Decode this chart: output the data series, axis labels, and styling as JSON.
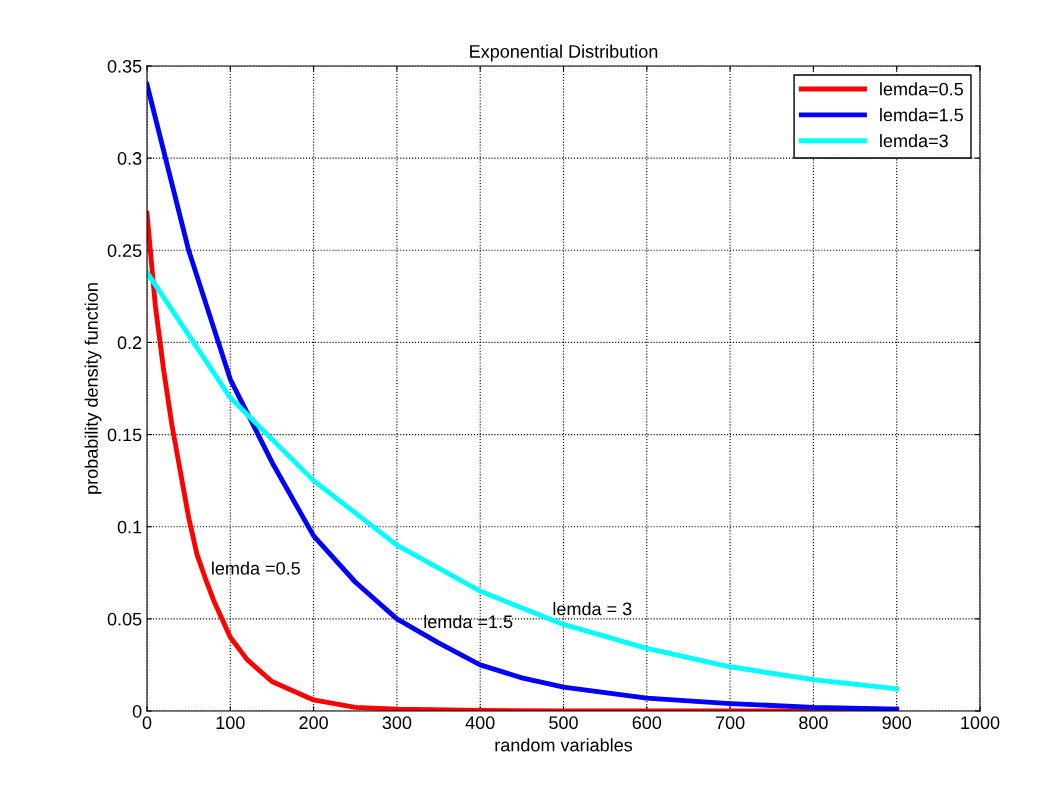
{
  "chart_data": {
    "type": "line",
    "title": "Exponential Distribution",
    "xlabel": "random variables",
    "ylabel": "probability density function",
    "xlim": [
      0,
      1000
    ],
    "xticks": [
      0,
      100,
      200,
      300,
      400,
      500,
      600,
      700,
      800,
      900,
      1000
    ],
    "ylim": [
      0,
      0.35
    ],
    "yticks": [
      0,
      0.05,
      0.1,
      0.15,
      0.2,
      0.25,
      0.3,
      0.35
    ],
    "grid": true,
    "legend": "top right",
    "line_style": "solid",
    "marker": "none",
    "series": [
      {
        "name": "lemda=0.5",
        "color": "#ff0000",
        "x": [
          0,
          10,
          20,
          30,
          40,
          50,
          60,
          70,
          80,
          100,
          120,
          150,
          200,
          250,
          300,
          400,
          500,
          900
        ],
        "values": [
          0.27,
          0.22,
          0.185,
          0.155,
          0.13,
          0.105,
          0.085,
          0.072,
          0.06,
          0.04,
          0.028,
          0.016,
          0.006,
          0.002,
          0.001,
          0.0003,
          0,
          0
        ]
      },
      {
        "name": "lemda=1.5",
        "color": "#0000ff",
        "x": [
          0,
          50,
          100,
          150,
          200,
          250,
          300,
          350,
          400,
          450,
          500,
          600,
          700,
          800,
          900
        ],
        "values": [
          0.34,
          0.25,
          0.18,
          0.135,
          0.095,
          0.07,
          0.05,
          0.037,
          0.025,
          0.018,
          0.013,
          0.007,
          0.004,
          0.002,
          0.001
        ]
      },
      {
        "name": "lemda=3",
        "color": "#00ffff",
        "x": [
          0,
          100,
          200,
          300,
          400,
          500,
          600,
          700,
          800,
          900
        ],
        "values": [
          0.238,
          0.17,
          0.125,
          0.09,
          0.065,
          0.047,
          0.034,
          0.024,
          0.017,
          0.012
        ]
      }
    ],
    "annotations": [
      {
        "text": "lemda =0.5",
        "x": 70,
        "y": 0.072
      },
      {
        "text": "lemda =1.5",
        "x": 325,
        "y": 0.043
      },
      {
        "text": "lemda = 3",
        "x": 480,
        "y": 0.05
      }
    ]
  }
}
